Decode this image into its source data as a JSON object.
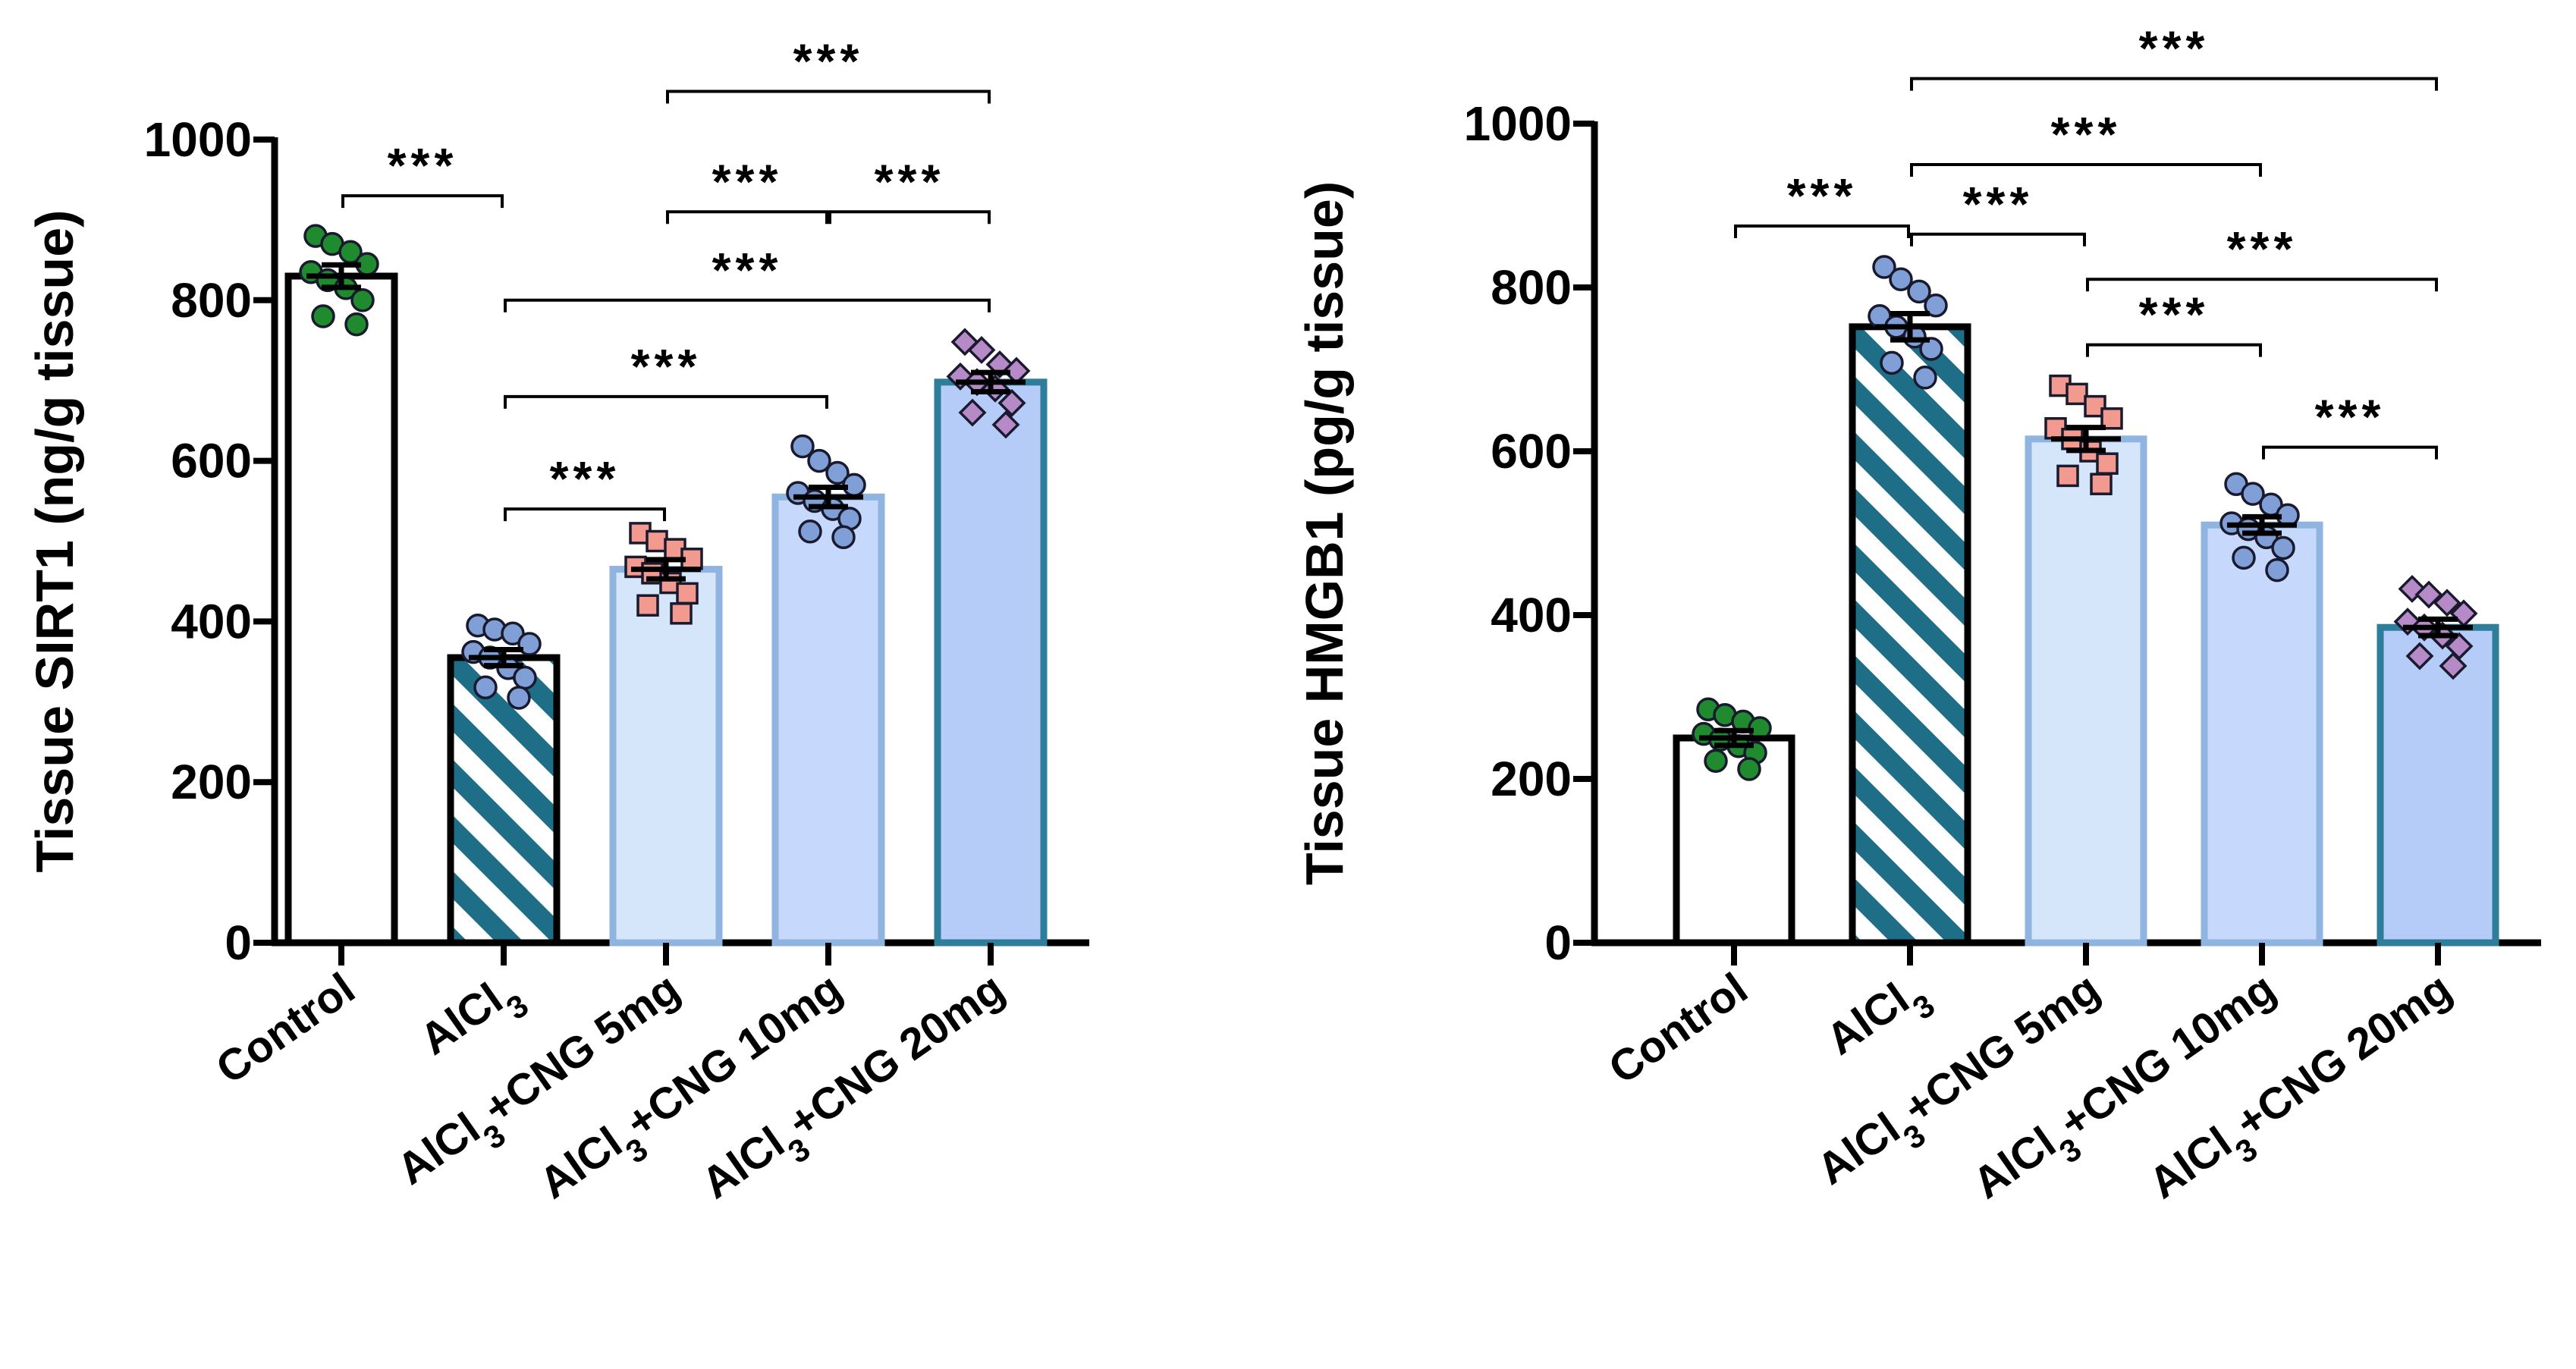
{
  "chart_data": [
    {
      "type": "bar",
      "ylabel": "Tissue SIRT1 (ng/g tissue)",
      "ylim": [
        0,
        1000
      ],
      "yticks": [
        0,
        200,
        400,
        600,
        800,
        1000
      ],
      "categories": [
        {
          "pre": "Control",
          "sub": "",
          "post": ""
        },
        {
          "pre": "AlCl",
          "sub": "3",
          "post": ""
        },
        {
          "pre": "AlCl",
          "sub": "3",
          "post": "+CNG 5mg"
        },
        {
          "pre": "AlCl",
          "sub": "3",
          "post": "+CNG 10mg"
        },
        {
          "pre": "AlCl",
          "sub": "3",
          "post": "+CNG 20mg"
        }
      ],
      "values": [
        830,
        355,
        465,
        555,
        698
      ],
      "sem": [
        14,
        10,
        12,
        12,
        12
      ],
      "points": [
        [
          880,
          870,
          860,
          845,
          835,
          825,
          815,
          800,
          780,
          770
        ],
        [
          395,
          390,
          385,
          372,
          362,
          355,
          342,
          330,
          318,
          305
        ],
        [
          510,
          500,
          490,
          478,
          468,
          460,
          448,
          435,
          420,
          410
        ],
        [
          618,
          600,
          585,
          570,
          560,
          550,
          540,
          528,
          512,
          505
        ],
        [
          748,
          738,
          720,
          712,
          705,
          698,
          690,
          672,
          660,
          645
        ]
      ],
      "colors": [
        "#ffffff",
        "hatch",
        "#d5e5fa",
        "#c6d8fb",
        "#b5cbf8"
      ],
      "bar_edges": [
        "#000000",
        "#000000",
        "#8fb4e0",
        "#8fb4e0",
        "#2e7d9a"
      ],
      "point_styles": [
        {
          "shape": "circle",
          "fill": "#1f8a2e"
        },
        {
          "shape": "circle",
          "fill": "#7f9fd6"
        },
        {
          "shape": "square",
          "fill": "#f29a90"
        },
        {
          "shape": "circle",
          "fill": "#7f9fd6"
        },
        {
          "shape": "diamond",
          "fill": "#b68ac6"
        }
      ],
      "comparisons": [
        {
          "from": 0,
          "to": 1,
          "level": 930,
          "label": "***"
        },
        {
          "from": 1,
          "to": 2,
          "level": 540,
          "label": "***"
        },
        {
          "from": 1,
          "to": 3,
          "level": 680,
          "label": "***"
        },
        {
          "from": 1,
          "to": 4,
          "level": 800,
          "label": "***"
        },
        {
          "from": 2,
          "to": 3,
          "level": 910,
          "label": "***"
        },
        {
          "from": 3,
          "to": 4,
          "level": 910,
          "label": "***"
        },
        {
          "from": 2,
          "to": 4,
          "level": 1060,
          "label": "***"
        }
      ]
    },
    {
      "type": "bar",
      "ylabel": "Tissue HMGB1 (pg/g tissue)",
      "ylim": [
        0,
        1000
      ],
      "yticks": [
        0,
        200,
        400,
        600,
        800,
        1000
      ],
      "categories": [
        {
          "pre": "Control",
          "sub": "",
          "post": ""
        },
        {
          "pre": "AlCl",
          "sub": "3",
          "post": ""
        },
        {
          "pre": "AlCl",
          "sub": "3",
          "post": "+CNG 5mg"
        },
        {
          "pre": "AlCl",
          "sub": "3",
          "post": "+CNG 10mg"
        },
        {
          "pre": "AlCl",
          "sub": "3",
          "post": "+CNG 20mg"
        }
      ],
      "values": [
        250,
        752,
        615,
        510,
        385
      ],
      "sem": [
        9,
        16,
        14,
        10,
        10
      ],
      "points": [
        [
          285,
          278,
          270,
          262,
          255,
          248,
          240,
          232,
          222,
          212
        ],
        [
          825,
          810,
          795,
          778,
          765,
          752,
          740,
          725,
          708,
          690
        ],
        [
          680,
          670,
          655,
          640,
          628,
          615,
          600,
          585,
          570,
          560
        ],
        [
          560,
          548,
          535,
          522,
          512,
          505,
          495,
          482,
          470,
          455
        ],
        [
          432,
          425,
          415,
          402,
          392,
          385,
          375,
          362,
          350,
          338
        ]
      ],
      "colors": [
        "#ffffff",
        "hatch",
        "#d5e5fa",
        "#c6d8fb",
        "#b5cbf8"
      ],
      "bar_edges": [
        "#000000",
        "#000000",
        "#8fb4e0",
        "#8fb4e0",
        "#2e7d9a"
      ],
      "point_styles": [
        {
          "shape": "circle",
          "fill": "#1f8a2e"
        },
        {
          "shape": "circle",
          "fill": "#7f9fd6"
        },
        {
          "shape": "square",
          "fill": "#f29a90"
        },
        {
          "shape": "circle",
          "fill": "#7f9fd6"
        },
        {
          "shape": "diamond",
          "fill": "#b68ac6"
        }
      ],
      "comparisons": [
        {
          "from": 0,
          "to": 1,
          "level": 875,
          "label": "***"
        },
        {
          "from": 1,
          "to": 2,
          "level": 865,
          "label": "***"
        },
        {
          "from": 1,
          "to": 3,
          "level": 950,
          "label": "***"
        },
        {
          "from": 1,
          "to": 4,
          "level": 1055,
          "label": "***"
        },
        {
          "from": 2,
          "to": 4,
          "level": 810,
          "label": "***"
        },
        {
          "from": 2,
          "to": 3,
          "level": 730,
          "label": "***"
        },
        {
          "from": 3,
          "to": 4,
          "level": 605,
          "label": "***"
        }
      ]
    }
  ],
  "colors": {
    "hatch_dark": "#1d6e86",
    "hatch_light": "#ffffff",
    "axis": "#000000",
    "marker_edge": "#1a1a2e"
  }
}
